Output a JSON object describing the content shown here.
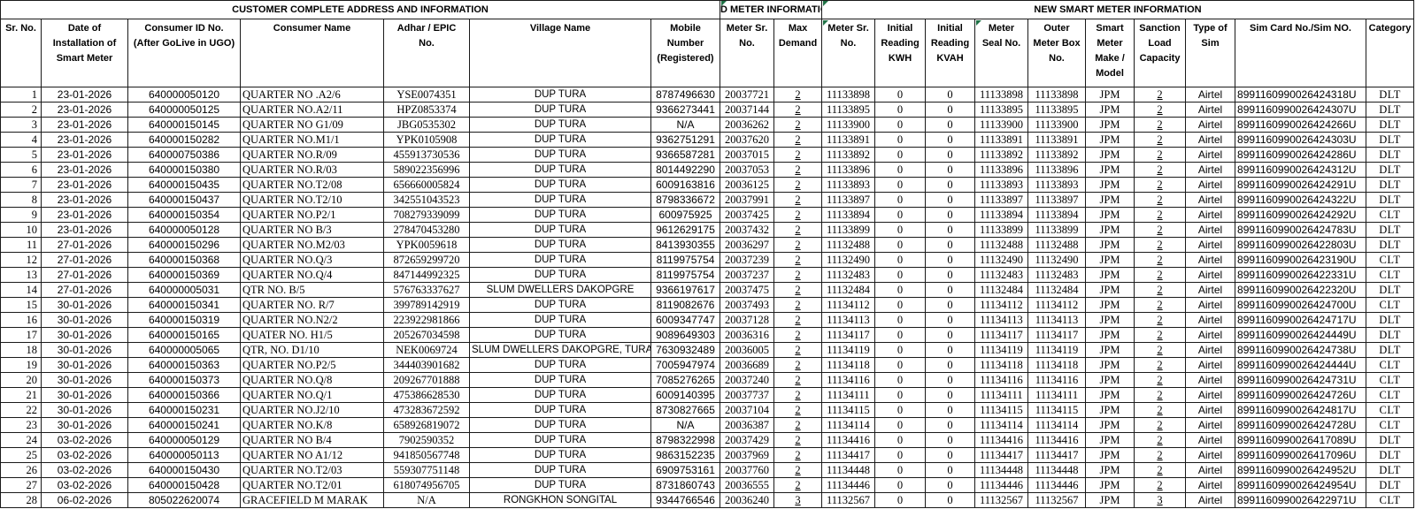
{
  "sections": [
    {
      "label": "CUSTOMER COMPLETE ADDRESS AND INFORMATION",
      "colspan": 7
    },
    {
      "label": "OLD METER INFORMATION",
      "colspan": 2
    },
    {
      "label": "NEW SMART METER INFORMATION",
      "colspan": 10
    }
  ],
  "columns": [
    {
      "key": "sr_no",
      "label": "Sr. No."
    },
    {
      "key": "installation_date",
      "label": "Date of\nInstallation of\nSmart Meter"
    },
    {
      "key": "consumer_id",
      "label": "Consumer ID No.\n(After GoLive in UGO)"
    },
    {
      "key": "consumer_name",
      "label": "Consumer Name"
    },
    {
      "key": "adhar_epic_no",
      "label": "Adhar / EPIC\nNo."
    },
    {
      "key": "village_name",
      "label": "Village Name"
    },
    {
      "key": "mobile_number",
      "label": "Mobile\nNumber\n(Registered)"
    },
    {
      "key": "old_meter_sr_no",
      "label": "Meter Sr.\nNo."
    },
    {
      "key": "max_demand",
      "label": "Max\nDemand"
    },
    {
      "key": "new_meter_sr_no",
      "label": "Meter Sr.\nNo."
    },
    {
      "key": "initial_reading_kwh",
      "label": "Initial\nReading\nKWH"
    },
    {
      "key": "initial_reading_kvah",
      "label": "Initial\nReading\nKVAH"
    },
    {
      "key": "meter_seal_no",
      "label": "Meter\nSeal No."
    },
    {
      "key": "outer_meter_box_no",
      "label": "Outer\nMeter Box\nNo."
    },
    {
      "key": "smart_meter_make_model",
      "label": "Smart\nMeter\nMake /\nModel"
    },
    {
      "key": "sanction_load_capacity",
      "label": "Sanction\nLoad\nCapacity"
    },
    {
      "key": "type_of_sim",
      "label": "Type of\nSim"
    },
    {
      "key": "sim_card_no",
      "label": "Sim Card No./Sim NO."
    },
    {
      "key": "category",
      "label": "Category"
    }
  ],
  "rows": [
    [
      "1",
      "23-01-2026",
      "640000050120",
      "QUARTER NO .A2/6",
      "YSE0074351",
      "DUP TURA",
      "8787496630",
      "20037721",
      "2",
      "11133898",
      "0",
      "0",
      "11133898",
      "11133898",
      "JPM",
      "2",
      "Airtel",
      "8991160990026424318U",
      "DLT"
    ],
    [
      "2",
      "23-01-2026",
      "640000050125",
      "QUARTER NO.A2/11",
      "HPZ0853374",
      "DUP TURA",
      "9366273441",
      "20037144",
      "2",
      "11133895",
      "0",
      "0",
      "11133895",
      "11133895",
      "JPM",
      "2",
      "Airtel",
      "8991160990026424307U",
      "DLT"
    ],
    [
      "3",
      "23-01-2026",
      "640000150145",
      "QUARTER NO G1/09",
      "JBG0535302",
      "DUP TURA",
      "N/A",
      "20036262",
      "2",
      "11133900",
      "0",
      "0",
      "11133900",
      "11133900",
      "JPM",
      "2",
      "Airtel",
      "8991160990026424266U",
      "DLT"
    ],
    [
      "4",
      "23-01-2026",
      "640000150282",
      "QUARTER NO.M1/1",
      "YPK0105908",
      "DUP TURA",
      "9362751291",
      "20037620",
      "2",
      "11133891",
      "0",
      "0",
      "11133891",
      "11133891",
      "JPM",
      "2",
      "Airtel",
      "8991160990026424303U",
      "DLT"
    ],
    [
      "5",
      "23-01-2026",
      "640000750386",
      "QUARTER NO.R/09",
      "455913730536",
      "DUP TURA",
      "9366587281",
      "20037015",
      "2",
      "11133892",
      "0",
      "0",
      "11133892",
      "11133892",
      "JPM",
      "2",
      "Airtel",
      "8991160990026424286U",
      "DLT"
    ],
    [
      "6",
      "23-01-2026",
      "640000150380",
      "QUARTER NO.R/03",
      "589022356996",
      "DUP TURA",
      "8014492290",
      "20037053",
      "2",
      "11133896",
      "0",
      "0",
      "11133896",
      "11133896",
      "JPM",
      "2",
      "Airtel",
      "8991160990026424312U",
      "DLT"
    ],
    [
      "7",
      "23-01-2026",
      "640000150435",
      "QUARTER NO.T2/08",
      "656660005824",
      "DUP TURA",
      "6009163816",
      "20036125",
      "2",
      "11133893",
      "0",
      "0",
      "11133893",
      "11133893",
      "JPM",
      "2",
      "Airtel",
      "8991160990026424291U",
      "DLT"
    ],
    [
      "8",
      "23-01-2026",
      "640000150437",
      "QUARTER NO.T2/10",
      "342551043523",
      "DUP TURA",
      "8798336672",
      "20037991",
      "2",
      "11133897",
      "0",
      "0",
      "11133897",
      "11133897",
      "JPM",
      "2",
      "Airtel",
      "8991160990026424322U",
      "DLT"
    ],
    [
      "9",
      "23-01-2026",
      "640000150354",
      "QUARTER NO.P2/1",
      "708279339099",
      "DUP TURA",
      "600975925",
      "20037425",
      "2",
      "11133894",
      "0",
      "0",
      "11133894",
      "11133894",
      "JPM",
      "2",
      "Airtel",
      "8991160990026424292U",
      "CLT"
    ],
    [
      "10",
      "23-01-2026",
      "640000050128",
      "QUARTER NO B/3",
      "278470453280",
      "DUP TURA",
      "9612629175",
      "20037432",
      "2",
      "11133899",
      "0",
      "0",
      "11133899",
      "11133899",
      "JPM",
      "2",
      "Airtel",
      "8991160990026424783U",
      "DLT"
    ],
    [
      "11",
      "27-01-2026",
      "640000150296",
      "QUARTER NO.M2/03",
      "YPK0059618",
      "DUP TURA",
      "8413930355",
      "20036297",
      "2",
      "11132488",
      "0",
      "0",
      "11132488",
      "11132488",
      "JPM",
      "2",
      "Airtel",
      "8991160990026422803U",
      "DLT"
    ],
    [
      "12",
      "27-01-2026",
      "640000150368",
      "QUARTER NO.Q/3",
      "872659299720",
      "DUP TURA",
      "8119975754",
      "20037239",
      "2",
      "11132490",
      "0",
      "0",
      "11132490",
      "11132490",
      "JPM",
      "2",
      "Airtel",
      "8991160990026423190U",
      "CLT"
    ],
    [
      "13",
      "27-01-2026",
      "640000150369",
      "QUARTER NO.Q/4",
      "847144992325",
      "DUP TURA",
      "8119975754",
      "20037237",
      "2",
      "11132483",
      "0",
      "0",
      "11132483",
      "11132483",
      "JPM",
      "2",
      "Airtel",
      "8991160990026422331U",
      "CLT"
    ],
    [
      "14",
      "27-01-2026",
      "640000005031",
      "QTR NO. B/5",
      "576763337627",
      "SLUM DWELLERS DAKOPGRE",
      "9366197617",
      "20037475",
      "2",
      "11132484",
      "0",
      "0",
      "11132484",
      "11132484",
      "JPM",
      "2",
      "Airtel",
      "8991160990026422320U",
      "DLT"
    ],
    [
      "15",
      "30-01-2026",
      "640000150341",
      "QUARTER NO. R/7",
      "399789142919",
      "DUP TURA",
      "8119082676",
      "20037493",
      "2",
      "11134112",
      "0",
      "0",
      "11134112",
      "11134112",
      "JPM",
      "2",
      "Airtel",
      "8991160990026424700U",
      "CLT"
    ],
    [
      "16",
      "30-01-2026",
      "640000150319",
      "QUARTER NO.N2/2",
      "223922981866",
      "DUP TURA",
      "6009347747",
      "20037128",
      "2",
      "11134113",
      "0",
      "0",
      "11134113",
      "11134113",
      "JPM",
      "2",
      "Airtel",
      "8991160990026424717U",
      "DLT"
    ],
    [
      "17",
      "30-01-2026",
      "640000150165",
      "QUATER NO. H1/5",
      "205267034598",
      "DUP TURA",
      "9089649303",
      "20036316",
      "2",
      "11134117",
      "0",
      "0",
      "11134117",
      "11134117",
      "JPM",
      "2",
      "Airtel",
      "8991160990026424449U",
      "DLT"
    ],
    [
      "18",
      "30-01-2026",
      "640000005065",
      "QTR, NO. D1/10",
      "NEK0069724",
      "SLUM DWELLERS DAKOPGRE, TURA",
      "7630932489",
      "20036005",
      "2",
      "11134119",
      "0",
      "0",
      "11134119",
      "11134119",
      "JPM",
      "2",
      "Airtel",
      "8991160990026424738U",
      "DLT"
    ],
    [
      "19",
      "30-01-2026",
      "640000150363",
      "QUARTER NO.P2/5",
      "344403901682",
      "DUP TURA",
      "7005947974",
      "20036689",
      "2",
      "11134118",
      "0",
      "0",
      "11134118",
      "11134118",
      "JPM",
      "2",
      "Airtel",
      "8991160990026424444U",
      "CLT"
    ],
    [
      "20",
      "30-01-2026",
      "640000150373",
      "QUARTER NO.Q/8",
      "209267701888",
      "DUP TURA",
      "7085276265",
      "20037240",
      "2",
      "11134116",
      "0",
      "0",
      "11134116",
      "11134116",
      "JPM",
      "2",
      "Airtel",
      "8991160990026424731U",
      "CLT"
    ],
    [
      "21",
      "30-01-2026",
      "640000150366",
      "QUARTER NO.Q/1",
      "475386628530",
      "DUP TURA",
      "6009140395",
      "20037737",
      "2",
      "11134111",
      "0",
      "0",
      "11134111",
      "11134111",
      "JPM",
      "2",
      "Airtel",
      "8991160990026424726U",
      "CLT"
    ],
    [
      "22",
      "30-01-2026",
      "640000150231",
      "QUARTER NO.J2/10",
      "473283672592",
      "DUP TURA",
      "8730827665",
      "20037104",
      "2",
      "11134115",
      "0",
      "0",
      "11134115",
      "11134115",
      "JPM",
      "2",
      "Airtel",
      "8991160990026424817U",
      "CLT"
    ],
    [
      "23",
      "30-01-2026",
      "640000150241",
      "QUARTER NO.K/8",
      "658926819072",
      "DUP TURA",
      "N/A",
      "20036387",
      "2",
      "11134114",
      "0",
      "0",
      "11134114",
      "11134114",
      "JPM",
      "2",
      "Airtel",
      "8991160990026424728U",
      "CLT"
    ],
    [
      "24",
      "03-02-2026",
      "640000050129",
      "QUARTER NO B/4",
      "7902590352",
      "DUP TURA",
      "8798322998",
      "20037429",
      "2",
      "11134416",
      "0",
      "0",
      "11134416",
      "11134416",
      "JPM",
      "2",
      "Airtel",
      "8991160990026417089U",
      "DLT"
    ],
    [
      "25",
      "03-02-2026",
      "640000050113",
      "QUARTER NO A1/12",
      "941850567748",
      "DUP TURA",
      "9863152235",
      "20037969",
      "2",
      "11134417",
      "0",
      "0",
      "11134417",
      "11134417",
      "JPM",
      "2",
      "Airtel",
      "8991160990026417096U",
      "DLT"
    ],
    [
      "26",
      "03-02-2026",
      "640000150430",
      "QUARTER NO.T2/03",
      "559307751148",
      "DUP TURA",
      "6909753161",
      "20037760",
      "2",
      "11134448",
      "0",
      "0",
      "11134448",
      "11134448",
      "JPM",
      "2",
      "Airtel",
      "8991160990026424952U",
      "DLT"
    ],
    [
      "27",
      "03-02-2026",
      "640000150428",
      "QUARTER NO.T2/01",
      "618074956705",
      "DUP TURA",
      "8731860743",
      "20036555",
      "2",
      "11134446",
      "0",
      "0",
      "11134446",
      "11134446",
      "JPM",
      "2",
      "Airtel",
      "8991160990026424954U",
      "DLT"
    ],
    [
      "28",
      "06-02-2026",
      "805022620074",
      "GRACEFIELD M MARAK",
      "N/A",
      "RONGKHON SONGITAL",
      "9344766546",
      "20036240",
      "3",
      "11132567",
      "0",
      "0",
      "11132567",
      "11132567",
      "JPM",
      "3",
      "Airtel",
      "8991160990026422971U",
      "CLT"
    ]
  ],
  "colors": {
    "error_indicator_green": "#1F7145",
    "grid_line": "#1a1a1a"
  }
}
